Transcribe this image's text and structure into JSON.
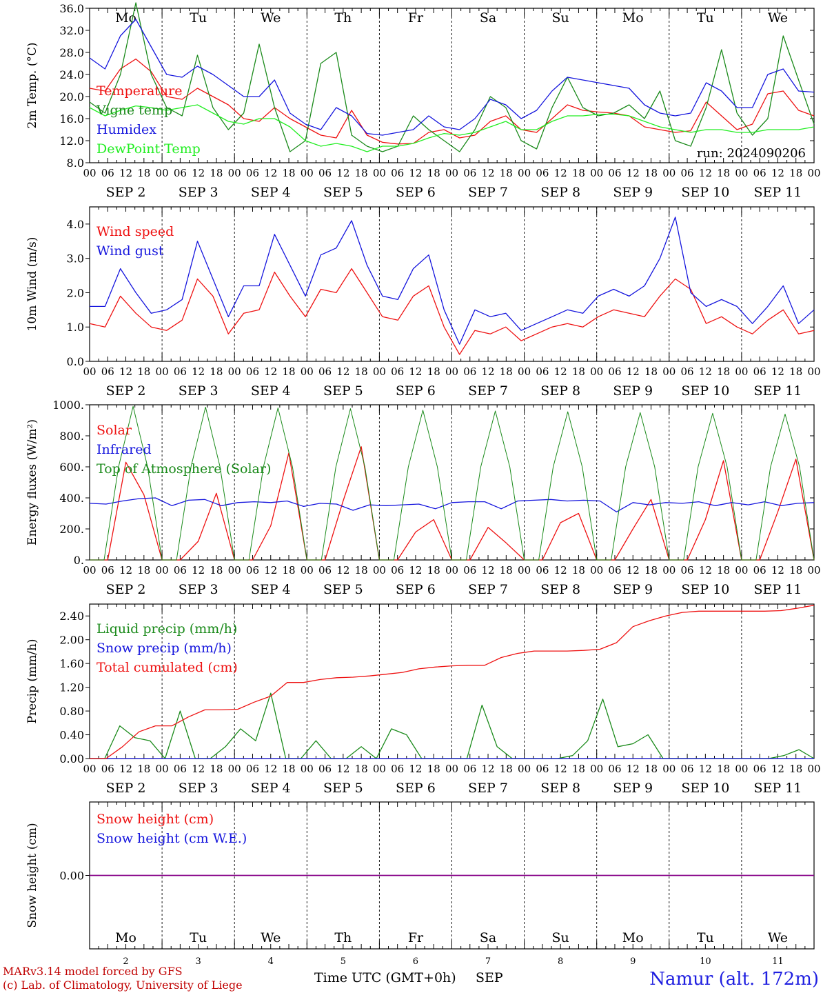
{
  "colors": {
    "red": "#ee1111",
    "blue": "#1515dd",
    "green": "#1a8a1a",
    "lightgreen": "#22ee22",
    "purple": "#880088",
    "black": "#000000",
    "weekend": "#ee1111"
  },
  "days": [
    {
      "name": "Mo",
      "date": "SEP  2",
      "num": "2",
      "weekend": false
    },
    {
      "name": "Tu",
      "date": "SEP  3",
      "num": "3",
      "weekend": false
    },
    {
      "name": "We",
      "date": "SEP  4",
      "num": "4",
      "weekend": false
    },
    {
      "name": "Th",
      "date": "SEP  5",
      "num": "5",
      "weekend": false
    },
    {
      "name": "Fr",
      "date": "SEP  6",
      "num": "6",
      "weekend": false
    },
    {
      "name": "Sa",
      "date": "SEP  7",
      "num": "7",
      "weekend": true
    },
    {
      "name": "Su",
      "date": "SEP  8",
      "num": "8",
      "weekend": true
    },
    {
      "name": "Mo",
      "date": "SEP  9",
      "num": "9",
      "weekend": false
    },
    {
      "name": "Tu",
      "date": "SEP 10",
      "num": "10",
      "weekend": false
    },
    {
      "name": "We",
      "date": "SEP 11",
      "num": "11",
      "weekend": false
    }
  ],
  "hour_ticks": [
    "00",
    "06",
    "12",
    "18"
  ],
  "final_tick": "00",
  "run_label": "run: 2024090206",
  "footer": {
    "line1": "MARv3.14 model forced by GFS",
    "line2": "(c) Lab. of Climatology, University of Liege",
    "x_title": "Time UTC (GMT+0h)",
    "month": "SEP",
    "station": "Namur (alt. 172m)"
  },
  "chart_data": [
    {
      "type": "line",
      "ylabel": "2m Temp. (°C)",
      "ylim": [
        8,
        36
      ],
      "yticks": [
        "8.0",
        "12.0",
        "16.0",
        "20.0",
        "24.0",
        "28.0",
        "32.0",
        "36.0"
      ],
      "x_unit": "hours since SEP 2 00 UTC, 6-hourly",
      "show_day_names": true,
      "series": [
        {
          "name": "Temperature",
          "color": "#ee1111",
          "values": [
            21.5,
            21,
            25,
            26.8,
            24.5,
            20,
            19.5,
            21.5,
            20,
            18.5,
            16,
            15.5,
            18,
            16,
            14.5,
            13,
            12.5,
            17.5,
            13,
            11.7,
            11.4,
            11.5,
            13.5,
            14,
            12.5,
            13,
            15.5,
            16.5,
            14,
            13.5,
            16,
            18.5,
            17.5,
            17.2,
            17,
            16.5,
            14.5,
            14,
            13.5,
            13.8,
            19,
            16.5,
            14,
            15,
            20.5,
            21,
            17.5,
            16.5
          ]
        },
        {
          "name": "Vigne temp",
          "color": "#1a8a1a",
          "values": [
            19,
            17,
            24,
            37,
            24,
            18,
            16.5,
            27.5,
            18,
            14,
            17,
            29.5,
            18,
            10,
            12,
            26,
            28,
            13,
            11,
            10,
            11,
            16.5,
            14,
            12,
            10,
            14,
            20,
            18,
            12,
            10.5,
            18,
            23.5,
            18,
            16.5,
            17,
            18.5,
            16,
            21,
            12,
            11,
            18,
            28.5,
            17,
            13,
            16,
            31,
            23,
            15
          ]
        },
        {
          "name": "Humidex",
          "color": "#1515dd",
          "values": [
            27,
            25,
            31,
            34,
            29,
            24,
            23.5,
            25.5,
            24,
            22,
            20,
            20,
            23,
            17,
            15,
            14,
            18,
            16.5,
            13.3,
            13,
            13.5,
            14,
            16.5,
            14.5,
            14,
            16,
            19.5,
            18.5,
            16,
            17.5,
            21,
            23.5,
            23,
            22.5,
            22,
            21.5,
            18.5,
            17,
            16.5,
            17,
            22.5,
            21,
            18,
            18,
            24,
            25,
            21,
            20.8
          ]
        },
        {
          "name": "DewPoint Temp",
          "color": "#22ee22",
          "values": [
            18,
            16.5,
            17.5,
            18.3,
            18,
            17.5,
            18,
            18.5,
            17,
            15.5,
            15,
            16,
            16,
            14.5,
            12,
            11,
            11.5,
            11,
            10,
            11,
            11,
            11.5,
            12.5,
            13.3,
            13,
            13.5,
            14.5,
            15.5,
            14,
            14,
            15.5,
            16.5,
            16.5,
            16.8,
            16.8,
            16.5,
            15.5,
            14.5,
            14,
            13.5,
            14,
            14,
            13.5,
            13.5,
            14,
            14,
            14,
            14.5
          ]
        }
      ]
    },
    {
      "type": "line",
      "ylabel": "10m Wind (m/s)",
      "ylim": [
        0,
        4.5
      ],
      "yticks": [
        "0.0",
        "1.0",
        "2.0",
        "3.0",
        "4.0"
      ],
      "show_day_names": false,
      "series": [
        {
          "name": "Wind speed",
          "color": "#ee1111",
          "values": [
            1.1,
            1.0,
            1.9,
            1.4,
            1.0,
            0.9,
            1.2,
            2.4,
            1.9,
            0.8,
            1.4,
            1.5,
            2.6,
            1.9,
            1.3,
            2.1,
            2.0,
            2.7,
            2.0,
            1.3,
            1.2,
            1.9,
            2.2,
            1.0,
            0.2,
            0.9,
            0.8,
            1.0,
            0.6,
            0.8,
            1.0,
            1.1,
            1.0,
            1.3,
            1.5,
            1.4,
            1.3,
            1.9,
            2.4,
            2.1,
            1.1,
            1.3,
            1.0,
            0.8,
            1.2,
            1.5,
            0.8,
            0.9
          ]
        },
        {
          "name": "Wind gust",
          "color": "#1515dd",
          "values": [
            1.6,
            1.6,
            2.7,
            2.0,
            1.4,
            1.5,
            1.8,
            3.5,
            2.4,
            1.3,
            2.2,
            2.2,
            3.7,
            2.8,
            1.9,
            3.1,
            3.3,
            4.1,
            2.8,
            1.9,
            1.8,
            2.7,
            3.1,
            1.5,
            0.5,
            1.5,
            1.3,
            1.4,
            0.9,
            1.1,
            1.3,
            1.5,
            1.4,
            1.9,
            2.1,
            1.9,
            2.2,
            3.0,
            4.2,
            2.0,
            1.6,
            1.8,
            1.6,
            1.1,
            1.6,
            2.2,
            1.1,
            1.5
          ]
        }
      ]
    },
    {
      "type": "line",
      "ylabel": "Energy fluxes (W/m²)",
      "ylim": [
        0,
        1000
      ],
      "yticks": [
        "0.",
        "200.",
        "400.",
        "600.",
        "800.",
        "1000."
      ],
      "show_day_names": false,
      "series": [
        {
          "name": "Solar",
          "color": "#ee1111",
          "values": [
            0,
            0,
            630,
            420,
            0,
            0,
            120,
            430,
            0,
            0,
            220,
            690,
            0,
            0,
            380,
            730,
            0,
            0,
            180,
            260,
            0,
            0,
            210,
            110,
            0,
            0,
            240,
            300,
            0,
            0,
            200,
            390,
            0,
            0,
            260,
            640,
            0,
            0,
            310,
            650,
            0
          ]
        },
        {
          "name": "Infrared",
          "color": "#1515dd",
          "values": [
            365,
            360,
            380,
            395,
            400,
            350,
            385,
            390,
            350,
            370,
            375,
            370,
            380,
            345,
            365,
            360,
            320,
            355,
            350,
            355,
            360,
            330,
            370,
            375,
            375,
            330,
            380,
            385,
            390,
            380,
            385,
            380,
            310,
            370,
            355,
            370,
            365,
            375,
            350,
            370,
            355,
            375,
            350,
            365,
            370
          ]
        },
        {
          "name": "Top of Atmosphere (Solar)",
          "color": "#1a8a1a",
          "values": [
            0,
            0,
            600,
            990,
            600,
            0,
            0,
            600,
            985,
            600,
            0,
            0,
            600,
            980,
            600,
            0,
            0,
            600,
            975,
            600,
            0,
            0,
            600,
            965,
            600,
            0,
            0,
            600,
            960,
            600,
            0,
            0,
            600,
            955,
            600,
            0,
            0,
            600,
            950,
            600,
            0,
            0,
            600,
            945,
            600,
            0,
            0,
            600,
            940,
            600,
            0
          ]
        }
      ]
    },
    {
      "type": "line",
      "ylabel": "Precip (mm/h)",
      "ylim": [
        0,
        2.6
      ],
      "yticks": [
        "0.00",
        "0.40",
        "0.80",
        "1.20",
        "1.60",
        "2.00",
        "2.40"
      ],
      "show_day_names": false,
      "series": [
        {
          "name": "Liquid precip (mm/h)",
          "color": "#1a8a1a",
          "values": [
            0,
            0,
            0.55,
            0.35,
            0.3,
            0,
            0.8,
            0,
            0,
            0.2,
            0.5,
            0.3,
            1.1,
            0,
            0,
            0.3,
            0,
            0,
            0.2,
            0,
            0.5,
            0.4,
            0,
            0,
            0,
            0,
            0.9,
            0.2,
            0,
            0,
            0,
            0,
            0.05,
            0.3,
            1.0,
            0.2,
            0.25,
            0.4,
            0,
            0,
            0,
            0,
            0,
            0,
            0,
            0,
            0.05,
            0.15,
            0
          ]
        },
        {
          "name": "Snow precip (mm/h)",
          "color": "#1515dd",
          "values": [
            0,
            0,
            0,
            0,
            0,
            0,
            0,
            0,
            0,
            0,
            0,
            0,
            0,
            0,
            0,
            0,
            0,
            0,
            0,
            0,
            0,
            0,
            0,
            0,
            0,
            0,
            0,
            0,
            0,
            0,
            0,
            0,
            0,
            0,
            0,
            0,
            0,
            0,
            0,
            0,
            0
          ]
        },
        {
          "name": "Total cumulated (cm)",
          "color": "#ee1111",
          "values": [
            0,
            0,
            0.2,
            0.45,
            0.55,
            0.55,
            0.7,
            0.82,
            0.82,
            0.83,
            0.95,
            1.05,
            1.28,
            1.28,
            1.33,
            1.36,
            1.37,
            1.39,
            1.42,
            1.45,
            1.51,
            1.54,
            1.56,
            1.57,
            1.57,
            1.7,
            1.77,
            1.81,
            1.81,
            1.81,
            1.82,
            1.84,
            1.95,
            2.22,
            2.32,
            2.4,
            2.46,
            2.48,
            2.48,
            2.48,
            2.48,
            2.48,
            2.49,
            2.53,
            2.58
          ]
        }
      ]
    },
    {
      "type": "line",
      "ylabel": "Snow height (cm)",
      "ylim": [
        -1,
        1
      ],
      "yticks": [
        "0.00"
      ],
      "show_day_names": true,
      "series": [
        {
          "name": "Snow height (cm)",
          "color": "#ee1111",
          "values": [
            0,
            0
          ]
        },
        {
          "name": "Snow height (cm W.E.)",
          "color": "#1515dd",
          "values": [
            0,
            0
          ]
        }
      ]
    }
  ]
}
